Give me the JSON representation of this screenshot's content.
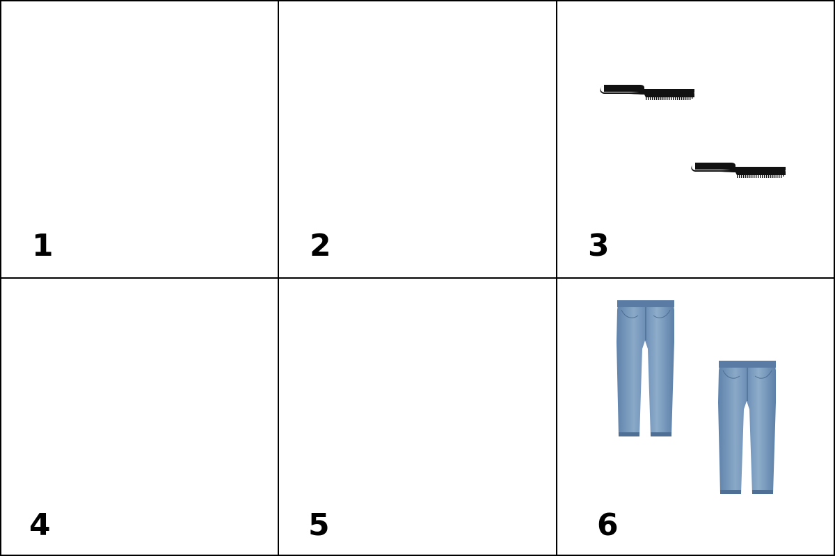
{
  "cells": [
    {
      "label": "1",
      "items": []
    },
    {
      "label": "2",
      "items": []
    },
    {
      "label": "3",
      "items": [
        {
          "icon": "comb-icon",
          "color": "#000000"
        },
        {
          "icon": "comb-icon",
          "color": "#000000"
        }
      ]
    },
    {
      "label": "4",
      "items": []
    },
    {
      "label": "5",
      "items": []
    },
    {
      "label": "6",
      "items": [
        {
          "icon": "jeans-icon",
          "color": "#6f8fb3"
        },
        {
          "icon": "jeans-icon",
          "color": "#6f8fb3"
        }
      ]
    }
  ]
}
